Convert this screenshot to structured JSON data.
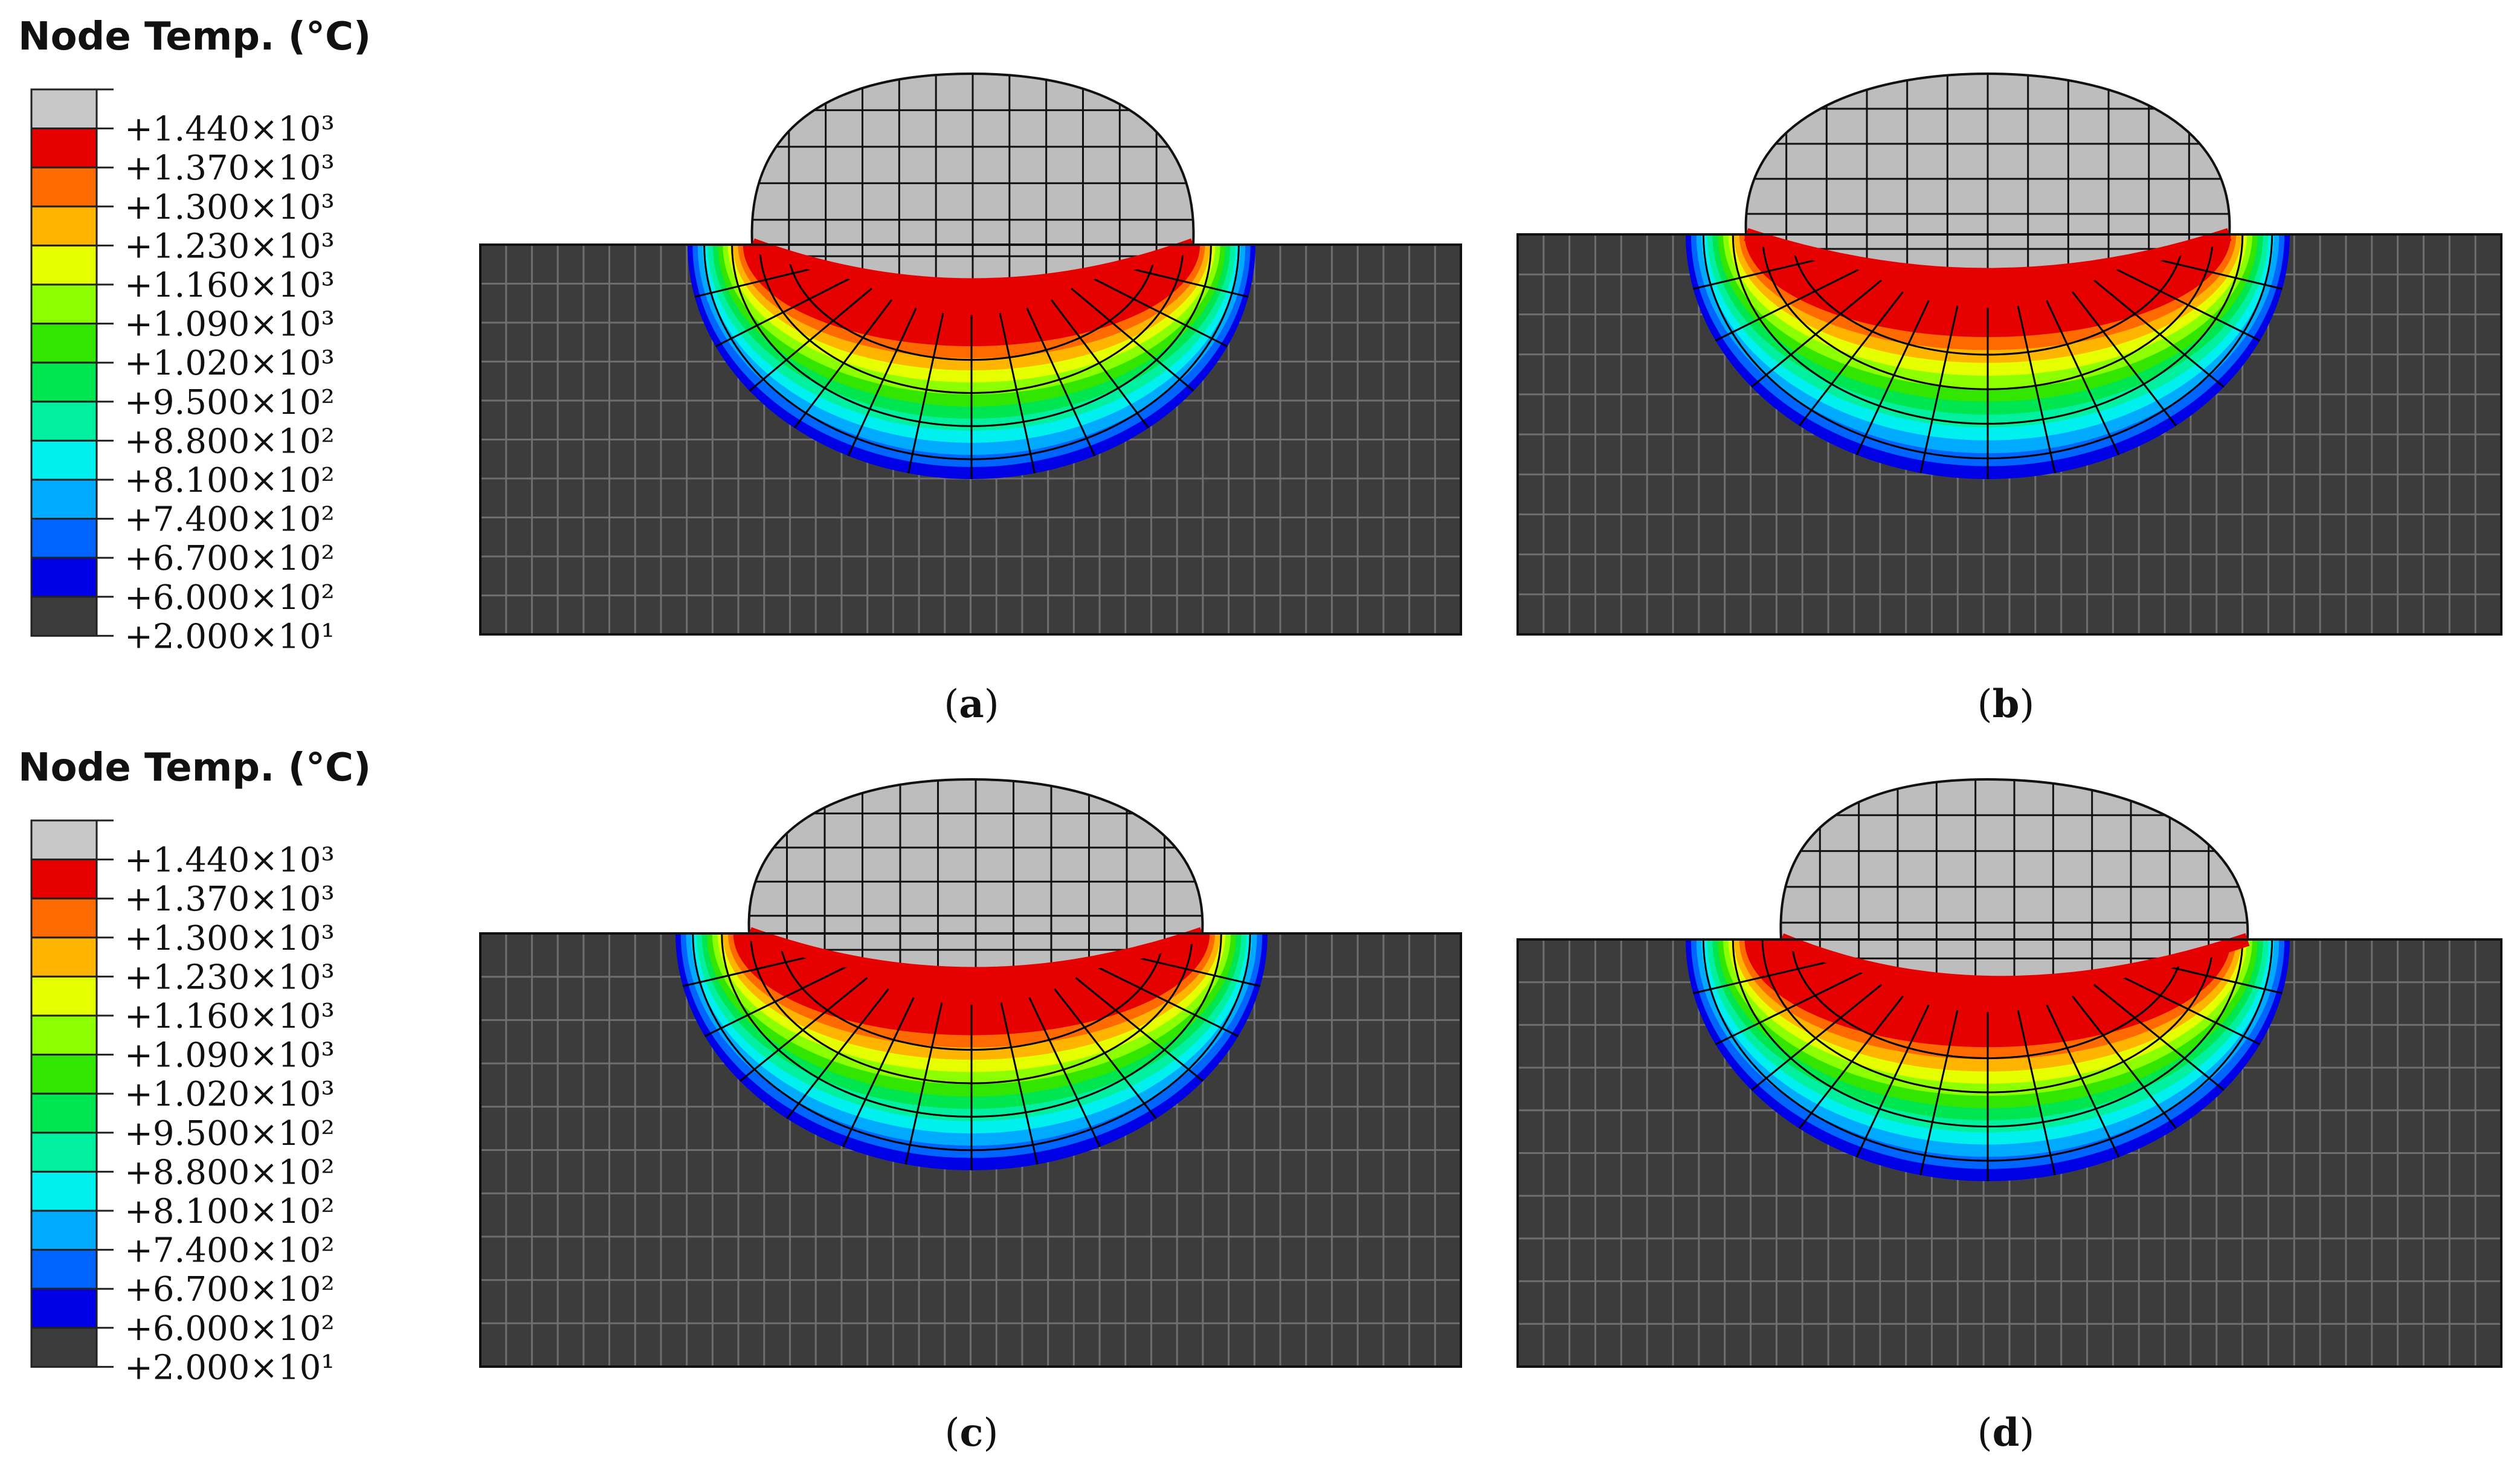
{
  "legend": {
    "title": "Node Temp. (°C)",
    "bands": [
      {
        "label": "+1.440×10³",
        "color": "#c8c8c8"
      },
      {
        "label": "+1.370×10³",
        "color": "#e60000"
      },
      {
        "label": "+1.300×10³",
        "color": "#ff6a00"
      },
      {
        "label": "+1.230×10³",
        "color": "#ffb400"
      },
      {
        "label": "+1.160×10³",
        "color": "#e6ff00"
      },
      {
        "label": "+1.090×10³",
        "color": "#8cff00"
      },
      {
        "label": "+1.020×10³",
        "color": "#33e600"
      },
      {
        "label": "+9.500×10²",
        "color": "#00e650"
      },
      {
        "label": "+8.800×10²",
        "color": "#00f0a0"
      },
      {
        "label": "+8.100×10²",
        "color": "#00f0f0"
      },
      {
        "label": "+7.400×10²",
        "color": "#00aaff"
      },
      {
        "label": "+6.700×10²",
        "color": "#0064ff"
      },
      {
        "label": "+6.000×10²",
        "color": "#0000e6"
      }
    ],
    "base": {
      "label": "+2.000×10¹",
      "color": "#3c3c3c"
    }
  },
  "panels": [
    {
      "id": "a",
      "caption": "(a)",
      "caption_letter": "a"
    },
    {
      "id": "b",
      "caption": "(b)",
      "caption_letter": "b"
    },
    {
      "id": "c",
      "caption": "(c)",
      "caption_letter": "c"
    },
    {
      "id": "d",
      "caption": "(d)",
      "caption_letter": "d"
    }
  ],
  "colors": {
    "substrate": "#3c3c3c",
    "bead": "#bdbdbd",
    "mesh_line": "#000000",
    "mesh_line_on_dark": "#6e6e6e"
  }
}
